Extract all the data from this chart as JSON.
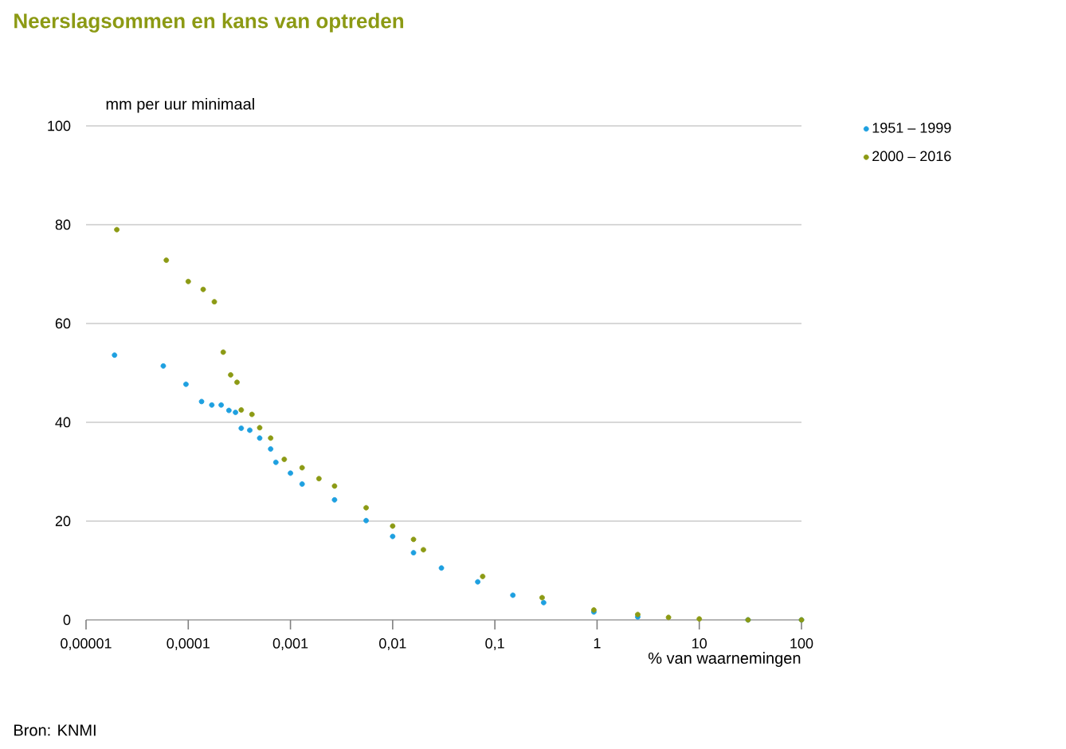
{
  "chart_data": {
    "type": "scatter",
    "title": "Neerslagsommen en kans van optreden",
    "xlabel": "% van waarnemingen",
    "ylabel": "mm per uur minimaal",
    "annotations": [
      "Bron: KNMI"
    ],
    "log": "x",
    "xlim": [
      1e-05,
      100
    ],
    "xticks": [
      {
        "value": 1e-05,
        "label": "0,00001"
      },
      {
        "value": 0.0001,
        "label": "0,0001"
      },
      {
        "value": 0.001,
        "label": "0,001"
      },
      {
        "value": 0.01,
        "label": "0,01"
      },
      {
        "value": 0.1,
        "label": "0,1"
      },
      {
        "value": 1,
        "label": "1"
      },
      {
        "value": 10,
        "label": "10"
      },
      {
        "value": 100,
        "label": "100"
      }
    ],
    "ylim": [
      0,
      100
    ],
    "yticks": [
      0,
      20,
      40,
      60,
      80,
      100
    ],
    "grid": "y",
    "legend": "top right",
    "marker": "circle",
    "series": [
      {
        "name": "1951 – 1999",
        "color": "#1ea0e0",
        "x": [
          1.9e-05,
          5.7e-05,
          9.5e-05,
          0.000135,
          0.00017,
          0.00021,
          0.00025,
          0.00029,
          0.00033,
          0.0004,
          0.0005,
          0.00064,
          0.00072,
          0.001,
          0.0013,
          0.0027,
          0.0055,
          0.01,
          0.016,
          0.03,
          0.068,
          0.15,
          0.3,
          0.93,
          2.5,
          5,
          10,
          30,
          100
        ],
        "values": [
          53.6,
          51.4,
          47.7,
          44.2,
          43.5,
          43.5,
          42.4,
          42.0,
          38.8,
          38.4,
          36.8,
          34.6,
          31.9,
          29.7,
          27.5,
          24.3,
          20.1,
          16.9,
          13.6,
          10.5,
          7.7,
          5.0,
          3.5,
          1.6,
          0.6,
          null,
          null,
          0,
          0
        ]
      },
      {
        "name": "2000 – 2016",
        "color": "#8c9a14",
        "x": [
          2e-05,
          6.1e-05,
          0.0001,
          0.00014,
          0.00018,
          0.00022,
          0.00026,
          0.0003,
          0.00033,
          0.00042,
          0.0005,
          0.00064,
          0.00087,
          0.0013,
          0.0019,
          0.0027,
          0.0055,
          0.01,
          0.016,
          0.02,
          0.076,
          0.29,
          0.93,
          2.5,
          5,
          10,
          30,
          100
        ],
        "values": [
          79,
          72.8,
          68.5,
          66.9,
          64.4,
          54.2,
          49.6,
          48.1,
          42.5,
          41.6,
          38.9,
          36.8,
          32.5,
          30.8,
          28.6,
          27.1,
          22.7,
          19.0,
          16.3,
          14.2,
          8.8,
          4.5,
          2.0,
          1.1,
          0.5,
          0.2,
          0,
          0
        ]
      }
    ]
  }
}
